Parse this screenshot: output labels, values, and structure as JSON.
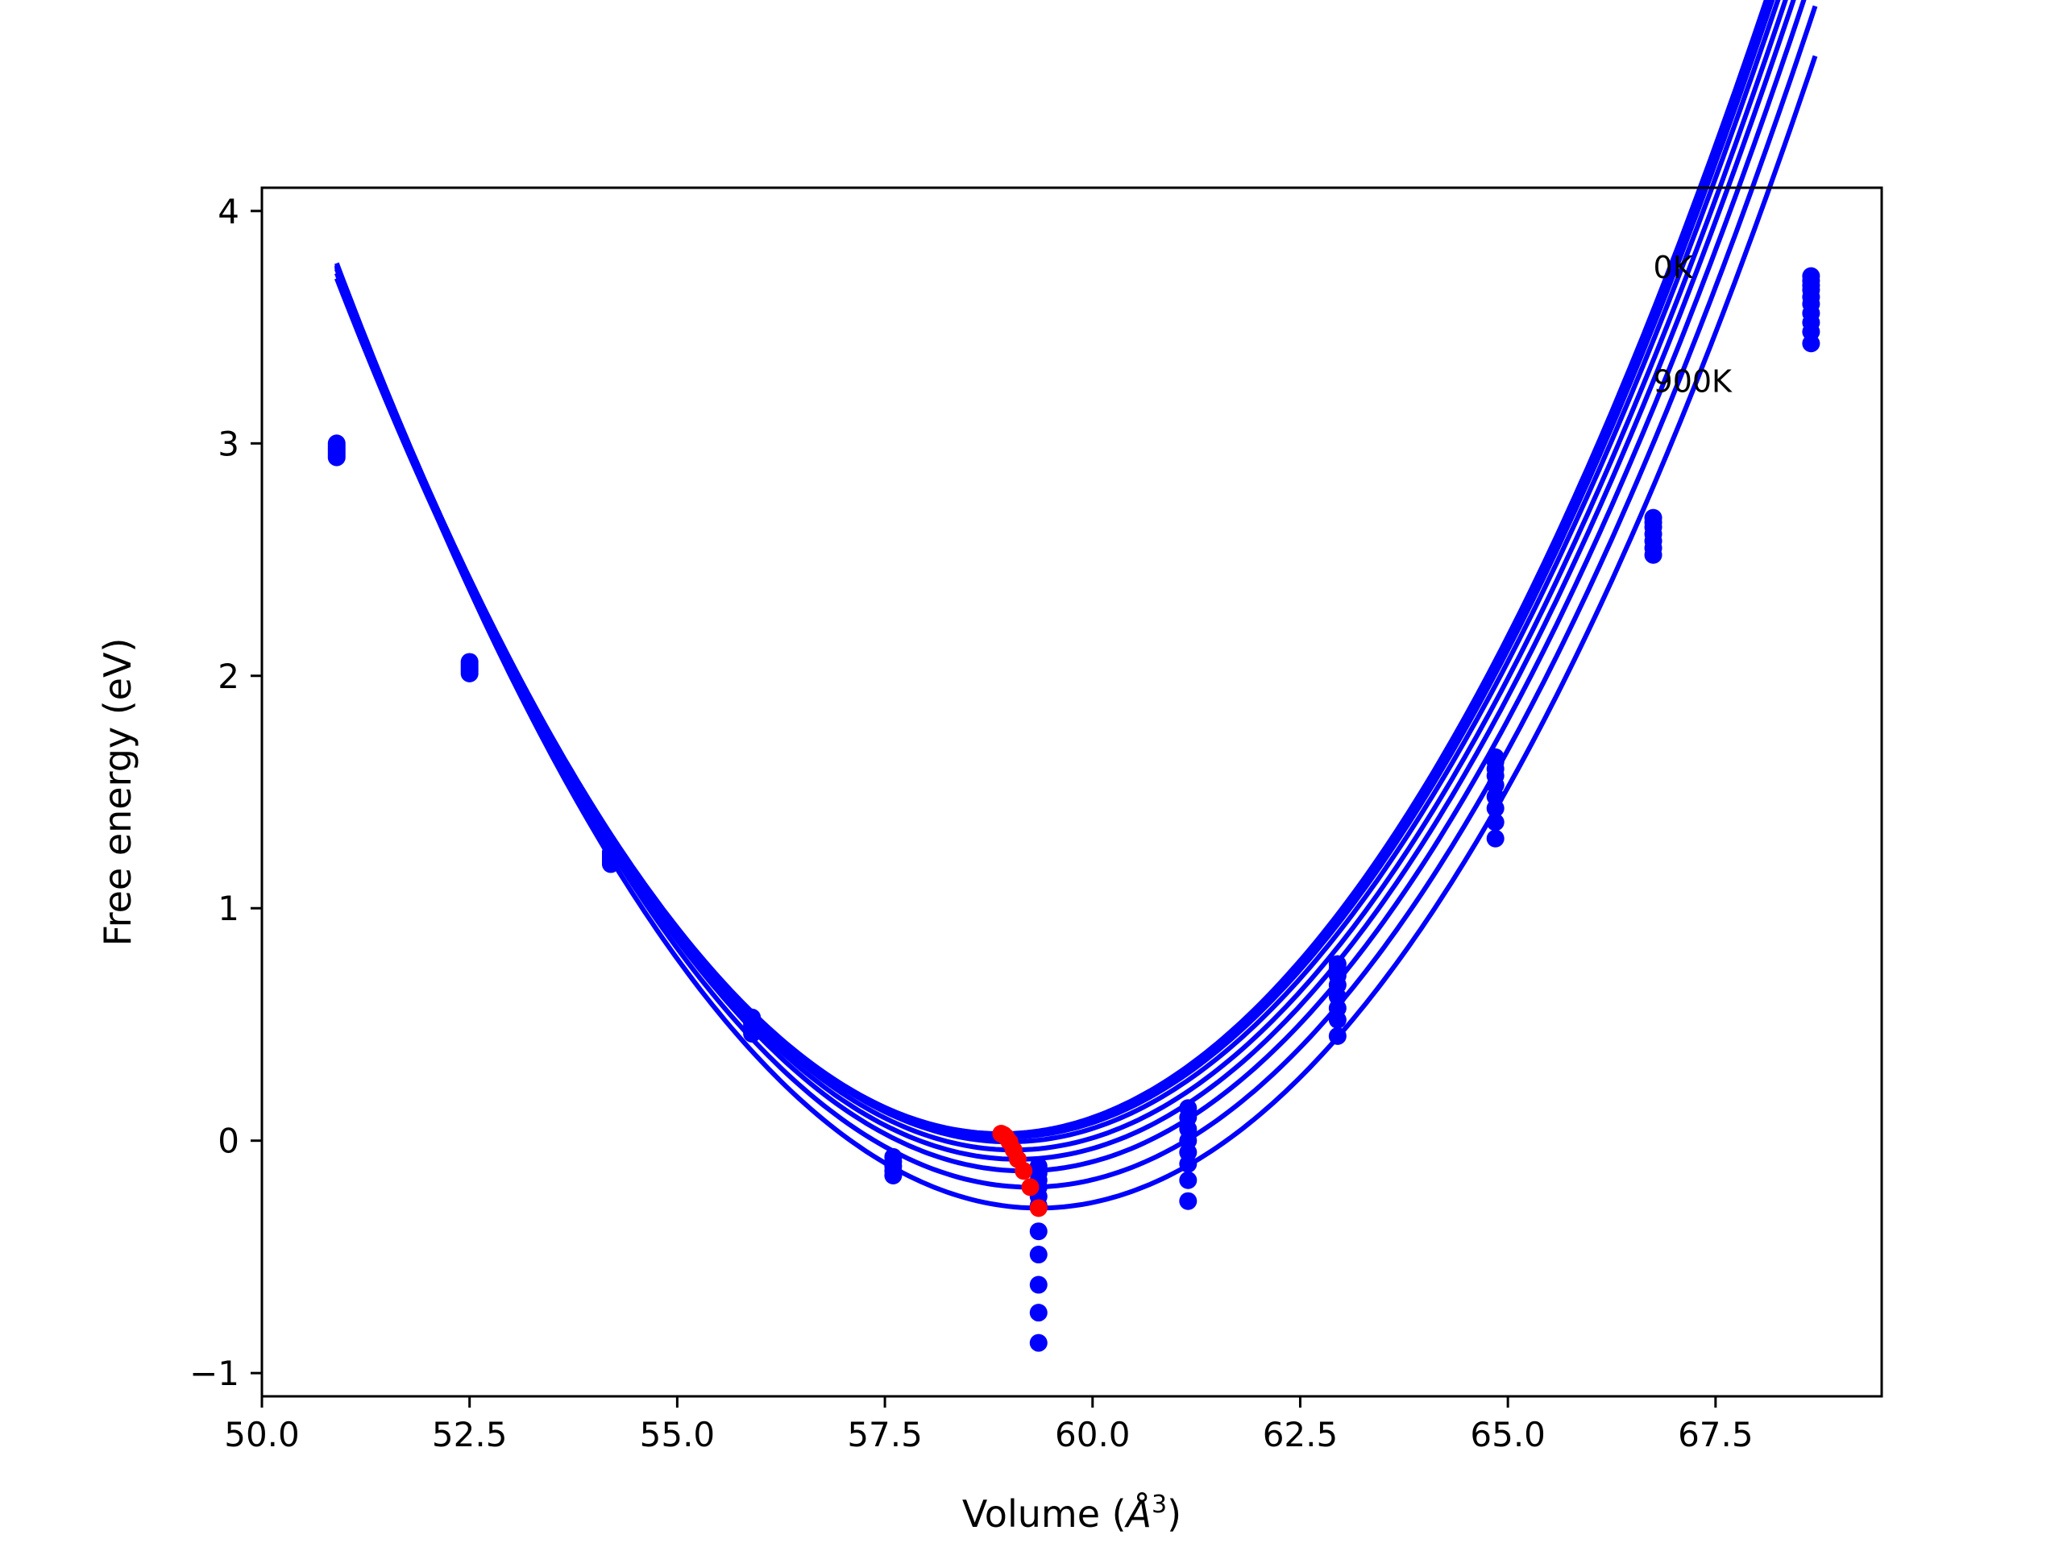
{
  "chart_data": {
    "type": "scatter",
    "title": "",
    "xlabel": "Volume (",
    "xlabel_unit": "Å",
    "xlabel_exp": "3",
    "xlabel_close": ")",
    "ylabel": "Free energy (eV)",
    "xlim": [
      50.0,
      69.5
    ],
    "ylim": [
      -1.1,
      4.1
    ],
    "xticks": [
      50.0,
      52.5,
      55.0,
      57.5,
      60.0,
      62.5,
      65.0,
      67.5
    ],
    "xtick_labels": [
      "50.0",
      "52.5",
      "55.0",
      "57.5",
      "60.0",
      "62.5",
      "65.0",
      "67.5"
    ],
    "yticks": [
      -1,
      0,
      1,
      2,
      3,
      4
    ],
    "ytick_labels": [
      "−1",
      "0",
      "1",
      "2",
      "3",
      "4"
    ],
    "grid": false,
    "annotations": [
      {
        "text": "0K",
        "x": 66.75,
        "y": 3.76
      },
      {
        "text": "900K",
        "x": 66.75,
        "y": 3.27
      }
    ],
    "colors": {
      "curves": "#0000ff",
      "points": "#0000ff",
      "minima": "#ff0000"
    },
    "fit_x_range": [
      50.9,
      68.7
    ],
    "curves": [
      {
        "v0": 58.9,
        "e0": 0.03,
        "a": 0.0575
      },
      {
        "v0": 58.93,
        "e0": 0.025,
        "a": 0.0575
      },
      {
        "v0": 58.96,
        "e0": 0.015,
        "a": 0.0575
      },
      {
        "v0": 59.0,
        "e0": -0.005,
        "a": 0.0574
      },
      {
        "v0": 59.05,
        "e0": -0.04,
        "a": 0.0573
      },
      {
        "v0": 59.1,
        "e0": -0.08,
        "a": 0.0572
      },
      {
        "v0": 59.17,
        "e0": -0.13,
        "a": 0.0571
      },
      {
        "v0": 59.25,
        "e0": -0.2,
        "a": 0.0569
      },
      {
        "v0": 59.35,
        "e0": -0.29,
        "a": 0.0567
      }
    ],
    "points_x": [
      50.9,
      52.5,
      54.2,
      55.9,
      57.6,
      59.35,
      61.15,
      62.95,
      64.85,
      66.75,
      68.65
    ],
    "points_y": [
      [
        3.0,
        2.99,
        2.98,
        2.97,
        2.96,
        2.95,
        2.94
      ],
      [
        2.06,
        2.05,
        2.04,
        2.03,
        2.02,
        2.01
      ],
      [
        1.24,
        1.23,
        1.22,
        1.21,
        1.2,
        1.19
      ],
      [
        0.53,
        0.52,
        0.51,
        0.5,
        0.49,
        0.48,
        0.47,
        0.46
      ],
      [
        -0.07,
        -0.09,
        -0.11,
        -0.13,
        -0.15
      ],
      [
        -0.11,
        -0.14,
        -0.17,
        -0.2,
        -0.24,
        -0.28,
        -0.39,
        -0.49,
        -0.62,
        -0.74,
        -0.87
      ],
      [
        0.14,
        0.1,
        0.05,
        0.0,
        -0.05,
        -0.1,
        -0.17,
        -0.26
      ],
      [
        0.76,
        0.74,
        0.71,
        0.67,
        0.62,
        0.57,
        0.52,
        0.45
      ],
      [
        1.65,
        1.63,
        1.6,
        1.57,
        1.53,
        1.48,
        1.43,
        1.37,
        1.3
      ],
      [
        2.68,
        2.66,
        2.64,
        2.61,
        2.58,
        2.55,
        2.52
      ],
      [
        3.72,
        3.7,
        3.68,
        3.66,
        3.63,
        3.6,
        3.56,
        3.52,
        3.48,
        3.43
      ]
    ],
    "minima": {
      "x": [
        58.9,
        58.93,
        58.96,
        59.0,
        59.05,
        59.1,
        59.17,
        59.25,
        59.35
      ],
      "y": [
        0.03,
        0.025,
        0.015,
        -0.005,
        -0.04,
        -0.08,
        -0.13,
        -0.2,
        -0.29
      ]
    }
  }
}
